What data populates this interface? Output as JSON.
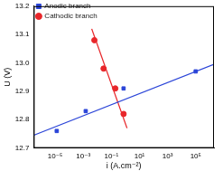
{
  "chart_data": {
    "type": "scatter",
    "x_label": "i (A.cm⁻²)",
    "y_label": "U (V)",
    "log": "x",
    "grid": false,
    "legend": "upper left",
    "xlim": [
      3e-07,
      2000000.0
    ],
    "xticks": [
      {
        "value": 1e-05,
        "label": "10⁻⁵"
      },
      {
        "value": 0.001,
        "label": "10⁻³"
      },
      {
        "value": 0.1,
        "label": "10⁻¹"
      },
      {
        "value": 10,
        "label": "10¹"
      },
      {
        "value": 1000,
        "label": "10³"
      },
      {
        "value": 100000,
        "label": "10⁵"
      }
    ],
    "ylim": [
      12.7,
      13.2
    ],
    "yticks": [
      12.7,
      12.8,
      12.9,
      {
        "value": 13,
        "label": "13.0"
      },
      13.1,
      13.2
    ],
    "series": [
      {
        "name": "Anodic branch",
        "color": "#2b45d8",
        "marker": "square",
        "line_style": "solid",
        "x": [
          1.3e-05,
          0.0015,
          0.74,
          100000
        ],
        "values": [
          12.76,
          12.83,
          12.91,
          12.97
        ],
        "fit": {
          "x": [
            3e-07,
            2000000.0
          ],
          "values": [
            12.745,
            12.995
          ]
        }
      },
      {
        "name": "Cathodic branch",
        "color": "#e8262a",
        "marker": "circle",
        "line_style": "solid",
        "x": [
          0.0062,
          0.028,
          0.19,
          0.74
        ],
        "values": [
          13.08,
          12.98,
          12.91,
          12.82
        ],
        "fit": {
          "x": [
            0.004,
            1.3
          ],
          "values": [
            13.12,
            12.77
          ]
        }
      }
    ]
  }
}
